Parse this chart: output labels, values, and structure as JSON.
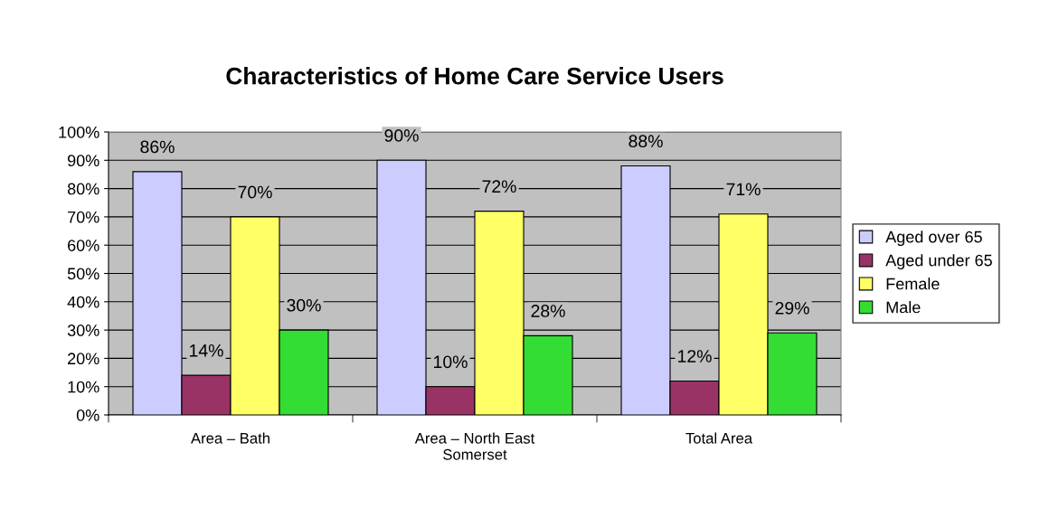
{
  "chart_data": {
    "type": "bar",
    "title": "Characteristics of Home Care Service Users",
    "categories": [
      "Area – Bath",
      "Area – North East\nSomerset",
      "Total Area"
    ],
    "series": [
      {
        "name": "Aged over 65",
        "color": "#ccccff",
        "values": [
          86,
          90,
          88
        ],
        "value_labels": [
          "86%",
          "90%",
          "88%"
        ]
      },
      {
        "name": "Aged under 65",
        "color": "#993366",
        "values": [
          14,
          10,
          12
        ],
        "value_labels": [
          "14%",
          "10%",
          "12%"
        ]
      },
      {
        "name": "Female",
        "color": "#ffff66",
        "values": [
          70,
          72,
          71
        ],
        "value_labels": [
          "70%",
          "72%",
          "71%"
        ]
      },
      {
        "name": "Male",
        "color": "#33dd33",
        "values": [
          30,
          28,
          29
        ],
        "value_labels": [
          "30%",
          "28%",
          "29%"
        ]
      }
    ],
    "ylim": [
      0,
      100
    ],
    "yticks": [
      {
        "value": 0,
        "label": "0%"
      },
      {
        "value": 10,
        "label": "10%"
      },
      {
        "value": 20,
        "label": "20%"
      },
      {
        "value": 30,
        "label": "30%"
      },
      {
        "value": 40,
        "label": "40%"
      },
      {
        "value": 50,
        "label": "50%"
      },
      {
        "value": 60,
        "label": "60%"
      },
      {
        "value": 70,
        "label": "70%"
      },
      {
        "value": 80,
        "label": "80%"
      },
      {
        "value": 90,
        "label": "90%"
      },
      {
        "value": 100,
        "label": "100%"
      }
    ],
    "grid": "y",
    "legend": "right"
  }
}
